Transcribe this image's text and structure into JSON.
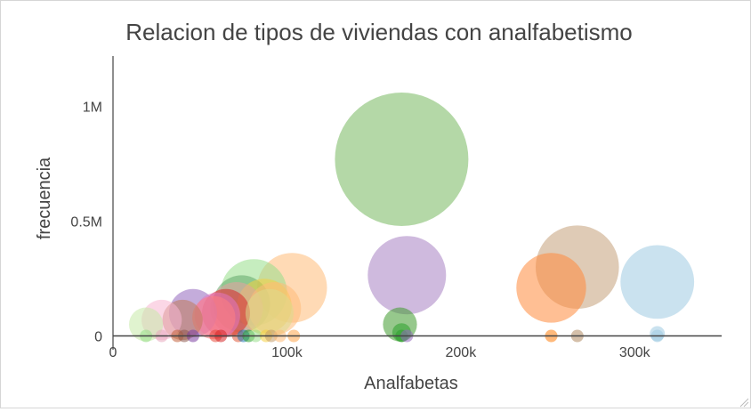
{
  "chart_data": {
    "type": "scatter",
    "title": "Relacion de tipos de viviendas con analfabetismo",
    "xlabel": "Analfabetas",
    "ylabel": "frecuencia",
    "xlim": [
      0,
      350000
    ],
    "ylim": [
      -60000,
      1220000
    ],
    "xticks": [
      {
        "value": 0,
        "label": "0"
      },
      {
        "value": 100000,
        "label": "100k"
      },
      {
        "value": 200000,
        "label": "200k"
      },
      {
        "value": 300000,
        "label": "300k"
      }
    ],
    "yticks": [
      {
        "value": 0,
        "label": "0"
      },
      {
        "value": 500000,
        "label": "0.5M"
      },
      {
        "value": 1000000,
        "label": "1M"
      }
    ],
    "grid": false,
    "bubble_opacity": 0.55,
    "points": [
      {
        "x": 166000,
        "y": 770000,
        "color": "#77b85f"
      },
      {
        "x": 169000,
        "y": 265000,
        "color": "#a782c3"
      },
      {
        "x": 267000,
        "y": 300000,
        "color": "#c4a07a"
      },
      {
        "x": 252000,
        "y": 210000,
        "color": "#ff8a3d"
      },
      {
        "x": 313000,
        "y": 235000,
        "color": "#9ecae1"
      },
      {
        "x": 103000,
        "y": 210000,
        "color": "#ffbb78"
      },
      {
        "x": 81000,
        "y": 190000,
        "color": "#98df8a"
      },
      {
        "x": 74000,
        "y": 140000,
        "color": "#62a86a"
      },
      {
        "x": 71000,
        "y": 120000,
        "color": "#e5a0a0"
      },
      {
        "x": 65000,
        "y": 100000,
        "color": "#d62728"
      },
      {
        "x": 87000,
        "y": 130000,
        "color": "#f4d03f"
      },
      {
        "x": 93000,
        "y": 120000,
        "color": "#ffbb78"
      },
      {
        "x": 90000,
        "y": 100000,
        "color": "#dbdb8d"
      },
      {
        "x": 46000,
        "y": 100000,
        "color": "#9467bd"
      },
      {
        "x": 40000,
        "y": 70000,
        "color": "#c07a5a"
      },
      {
        "x": 58000,
        "y": 80000,
        "color": "#ff7f7f"
      },
      {
        "x": 60000,
        "y": 90000,
        "color": "#e377c2"
      },
      {
        "x": 28000,
        "y": 70000,
        "color": "#f7b6d2"
      },
      {
        "x": 19000,
        "y": 50000,
        "color": "#c7e9a8"
      },
      {
        "x": 165000,
        "y": 50000,
        "color": "#3f9a2e"
      },
      {
        "x": 166000,
        "y": 15000,
        "color": "#2ca02c"
      },
      {
        "x": 313000,
        "y": 10000,
        "color": "#9ecae1"
      },
      {
        "x": 19000,
        "y": 0,
        "color": "#98df8a"
      },
      {
        "x": 28000,
        "y": 0,
        "color": "#e7a8bd"
      },
      {
        "x": 37000,
        "y": 0,
        "color": "#c2603a"
      },
      {
        "x": 41000,
        "y": 0,
        "color": "#8c564b"
      },
      {
        "x": 46000,
        "y": 0,
        "color": "#7b3fa1"
      },
      {
        "x": 59000,
        "y": 0,
        "color": "#e84a3a"
      },
      {
        "x": 62000,
        "y": 0,
        "color": "#d62728"
      },
      {
        "x": 72000,
        "y": 0,
        "color": "#e05a3a"
      },
      {
        "x": 75000,
        "y": 0,
        "color": "#1f77b4"
      },
      {
        "x": 78000,
        "y": 0,
        "color": "#2ca02c"
      },
      {
        "x": 82000,
        "y": 0,
        "color": "#98df8a"
      },
      {
        "x": 88000,
        "y": 0,
        "color": "#f4d03f"
      },
      {
        "x": 91000,
        "y": 0,
        "color": "#c49c6a"
      },
      {
        "x": 96000,
        "y": 0,
        "color": "#ffbb78"
      },
      {
        "x": 104000,
        "y": 0,
        "color": "#ffa64d"
      },
      {
        "x": 166000,
        "y": 0,
        "color": "#2ca02c"
      },
      {
        "x": 169000,
        "y": 0,
        "color": "#9467bd"
      },
      {
        "x": 252000,
        "y": 0,
        "color": "#ff7f0e"
      },
      {
        "x": 267000,
        "y": 0,
        "color": "#b08a62"
      },
      {
        "x": 313000,
        "y": 0,
        "color": "#9ecae1"
      }
    ]
  }
}
